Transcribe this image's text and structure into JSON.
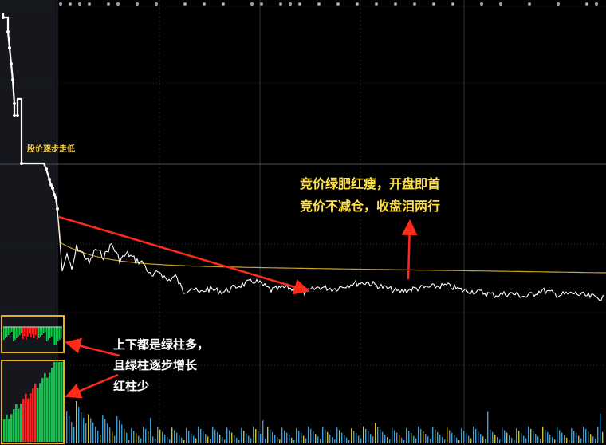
{
  "annotations": {
    "price_note": "股价逐步走低",
    "auction_line1": "竞价绿肥红瘦，开盘即首",
    "auction_line2": "竞价不减仓，收盘泪两行",
    "volume_line1": "上下都是绿柱多，",
    "volume_line2": "且绿柱逐步增长",
    "volume_line3": "红柱少"
  },
  "colors": {
    "background": "#000000",
    "auction_panel": "#1a1c22",
    "grid": "#2a2f3a",
    "price_line": "#ffffff",
    "avg_line": "#c9a227",
    "arrow": "#ff2a1a",
    "highlight_box": "#e8b020",
    "bar_green": "#18c050",
    "bar_red": "#ff2020",
    "bar_cyan": "#3a9ed6",
    "bar_yellow": "#d4c020"
  },
  "chart_data": {
    "type": "line",
    "series": [
      {
        "values": [
          100,
          99,
          96,
          92,
          88,
          84,
          84,
          84,
          82,
          78,
          76,
          74,
          73,
          72,
          72,
          73,
          72,
          71,
          71,
          70,
          71,
          70,
          70,
          70,
          70
        ]
      },
      {
        "values": [
          100,
          97,
          94,
          91,
          88,
          86,
          84,
          83,
          82,
          81,
          80,
          79,
          78,
          77,
          77,
          76,
          76,
          76,
          75,
          75,
          75,
          75,
          75,
          75,
          75
        ]
      }
    ]
  }
}
